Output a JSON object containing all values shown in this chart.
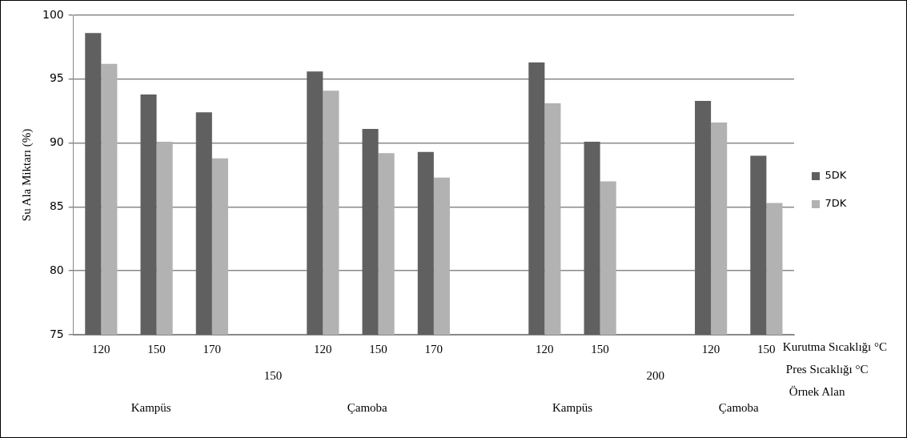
{
  "chart_data": {
    "type": "bar",
    "ylabel": "Su Ala Miktarı (%)",
    "categories": [
      "120",
      "150",
      "170",
      null,
      "120",
      "150",
      "170",
      null,
      "120",
      "150",
      null,
      "120",
      "150"
    ],
    "series": [
      {
        "name": "5DK",
        "color": "#606060",
        "values": [
          98.6,
          93.8,
          92.4,
          null,
          95.6,
          91.1,
          89.3,
          null,
          96.3,
          90.1,
          null,
          93.3,
          89.0
        ]
      },
      {
        "name": "7DK",
        "color": "#b2b2b2",
        "values": [
          96.2,
          90.1,
          88.8,
          null,
          94.1,
          89.2,
          87.3,
          null,
          93.1,
          87.0,
          null,
          91.6,
          85.3
        ]
      }
    ],
    "ylim": [
      75,
      100
    ],
    "yticks": [
      75,
      80,
      85,
      90,
      95,
      100
    ],
    "grid": "y",
    "legend": "right",
    "annotations": [
      "150",
      "200",
      "Kampüs",
      "Çamoba",
      "Kampüs",
      "Çamoba",
      "Kurutma Sıcaklığı °C",
      "Pres Sıcaklığı °C",
      "Örnek Alan"
    ]
  }
}
